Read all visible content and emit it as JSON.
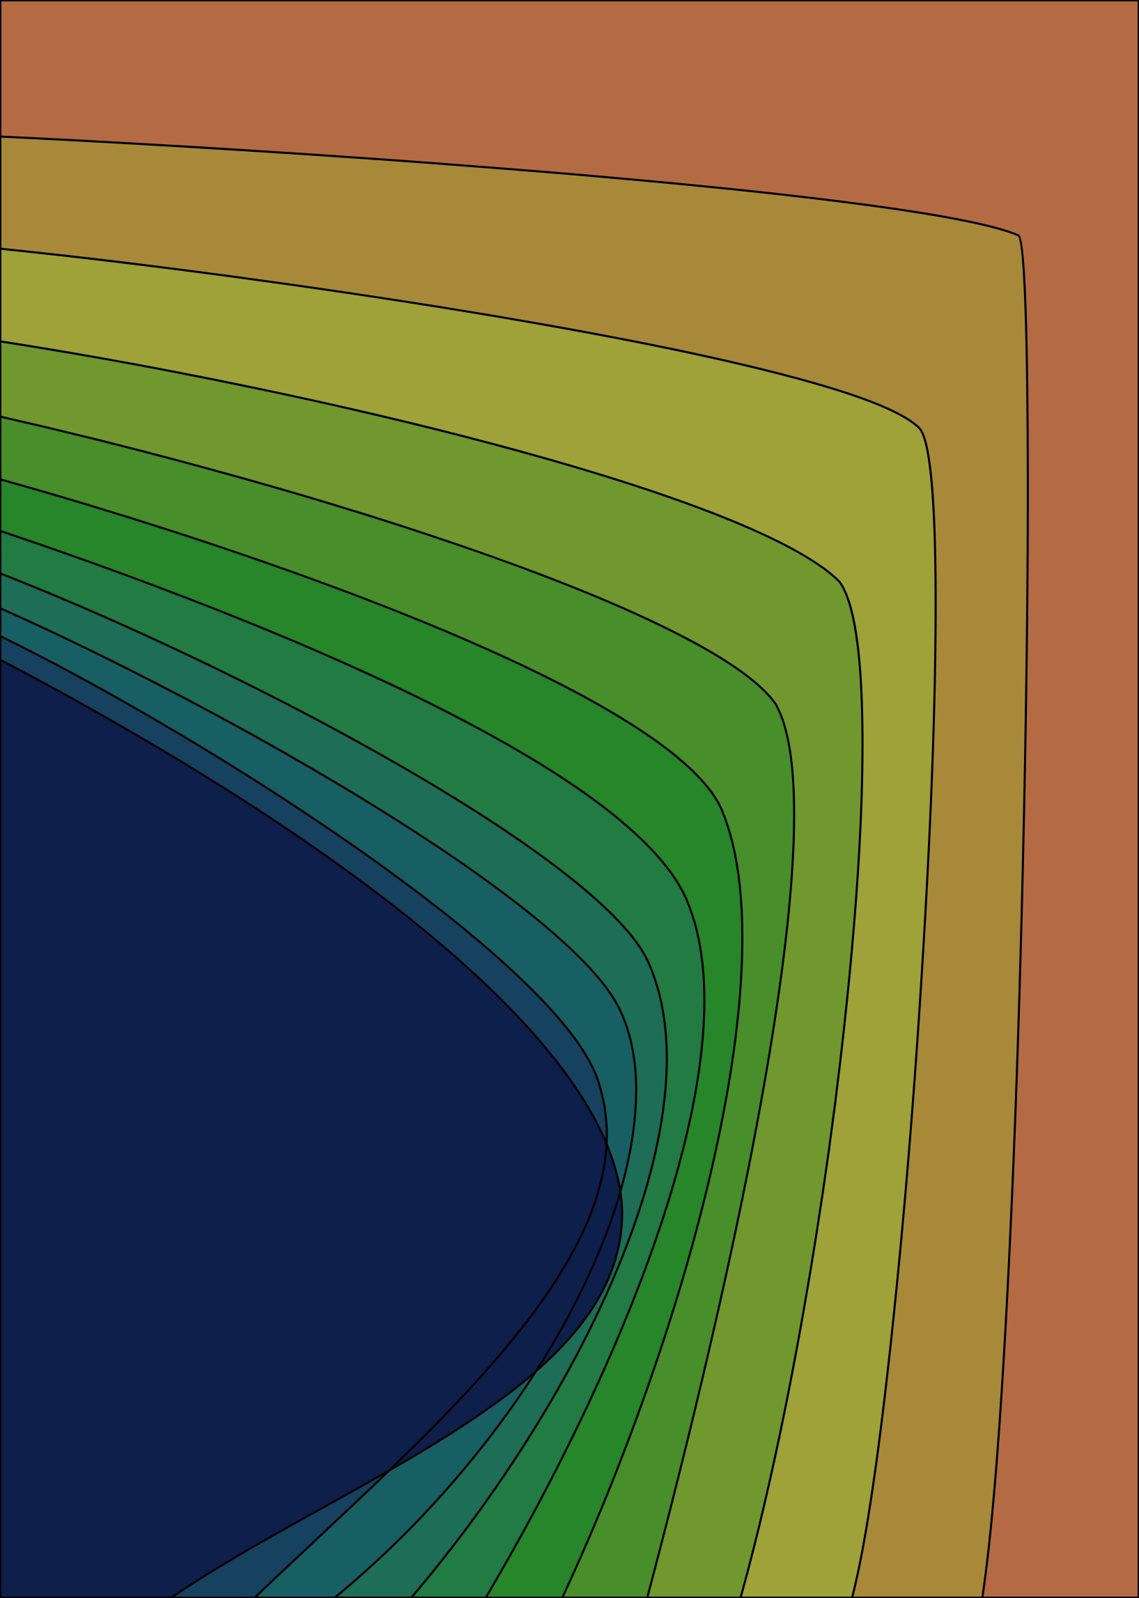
{
  "figure": {
    "type": "filled-contour",
    "outline_color": "#000000",
    "level_count": 11,
    "bands": [
      {
        "fill": "#b46b44"
      },
      {
        "fill": "#a8893a"
      },
      {
        "fill": "#9ea238"
      },
      {
        "fill": "#70982f"
      },
      {
        "fill": "#488e2a"
      },
      {
        "fill": "#268629"
      },
      {
        "fill": "#217b42"
      },
      {
        "fill": "#1d6d57"
      },
      {
        "fill": "#185f63"
      },
      {
        "fill": "#164260"
      },
      {
        "fill": "#0e1f4c"
      }
    ]
  }
}
